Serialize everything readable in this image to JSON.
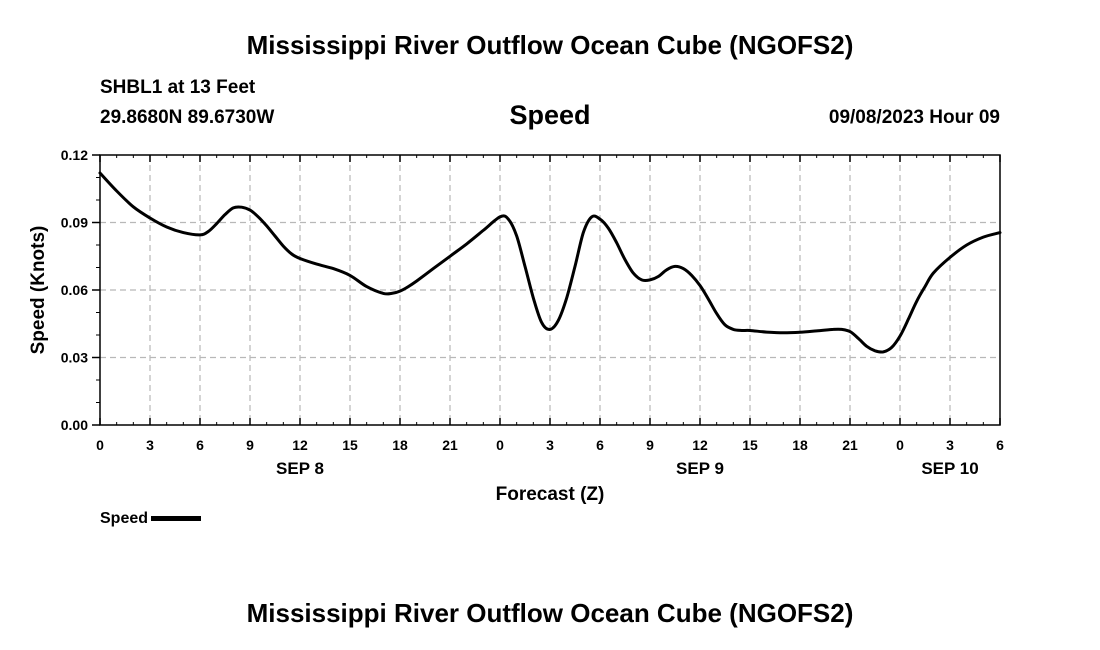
{
  "header": {
    "title": "Mississippi River Outflow Ocean Cube (NGOFS2)",
    "station": "SHBL1 at 13 Feet",
    "coordinates": "29.8680N  89.6730W",
    "subtitle": "Speed",
    "datetime": "09/08/2023 Hour 09"
  },
  "footer": {
    "title": "Mississippi River Outflow Ocean Cube (NGOFS2)"
  },
  "chart_data": {
    "type": "line",
    "title": "Speed",
    "xlabel": "Forecast (Z)",
    "ylabel": "Speed (Knots)",
    "xlim": [
      0,
      54
    ],
    "ylim": [
      0,
      0.12
    ],
    "y_ticks": [
      "0.00",
      "0.03",
      "0.06",
      "0.09",
      "0.12"
    ],
    "x_ticks": [
      "0",
      "3",
      "6",
      "9",
      "12",
      "15",
      "18",
      "21",
      "0",
      "3",
      "6",
      "9",
      "12",
      "15",
      "18",
      "21",
      "0",
      "3",
      "6"
    ],
    "date_labels": [
      {
        "label": "SEP 8",
        "at": 12
      },
      {
        "label": "SEP 9",
        "at": 36
      },
      {
        "label": "SEP 10",
        "at": 51
      }
    ],
    "grid": true,
    "legend_position": "bottom-left",
    "series": [
      {
        "name": "Speed",
        "color": "#000000",
        "x": [
          0,
          1,
          2,
          3,
          4,
          5,
          6,
          6.5,
          7,
          7.5,
          8,
          8.5,
          9,
          9.5,
          10,
          10.5,
          11,
          11.5,
          12,
          13,
          14,
          15,
          16,
          17,
          17.5,
          18,
          18.5,
          19,
          20,
          21,
          22,
          23,
          24,
          24.5,
          25,
          25.5,
          26,
          26.5,
          27,
          27.5,
          28,
          28.5,
          29,
          29.5,
          30,
          30.5,
          31,
          31.5,
          32,
          32.5,
          33,
          33.5,
          34,
          34.5,
          35,
          35.5,
          36,
          36.5,
          37,
          37.5,
          38,
          38.5,
          39,
          40,
          41,
          42,
          43,
          44,
          44.5,
          45,
          45.5,
          46,
          46.5,
          47,
          47.5,
          48,
          48.5,
          49,
          49.5,
          50,
          51,
          52,
          53,
          54
        ],
        "values": [
          0.112,
          0.104,
          0.097,
          0.092,
          0.088,
          0.0855,
          0.0845,
          0.086,
          0.0895,
          0.0935,
          0.0965,
          0.0968,
          0.0955,
          0.0925,
          0.0885,
          0.084,
          0.0795,
          0.076,
          0.074,
          0.0715,
          0.0695,
          0.0665,
          0.0615,
          0.0585,
          0.0585,
          0.0595,
          0.0615,
          0.064,
          0.0695,
          0.075,
          0.0805,
          0.0865,
          0.0925,
          0.0915,
          0.084,
          0.0705,
          0.0565,
          0.0455,
          0.0425,
          0.0465,
          0.0565,
          0.0705,
          0.0855,
          0.0925,
          0.0915,
          0.0875,
          0.081,
          0.0735,
          0.0675,
          0.0645,
          0.0645,
          0.066,
          0.069,
          0.0705,
          0.0695,
          0.0665,
          0.062,
          0.056,
          0.0495,
          0.0445,
          0.0425,
          0.042,
          0.042,
          0.0413,
          0.041,
          0.0412,
          0.0418,
          0.0425,
          0.0425,
          0.0415,
          0.0385,
          0.035,
          0.033,
          0.0325,
          0.0345,
          0.0395,
          0.047,
          0.055,
          0.0615,
          0.0675,
          0.0745,
          0.08,
          0.0835,
          0.0855
        ]
      }
    ]
  },
  "legend": {
    "label": "Speed"
  }
}
